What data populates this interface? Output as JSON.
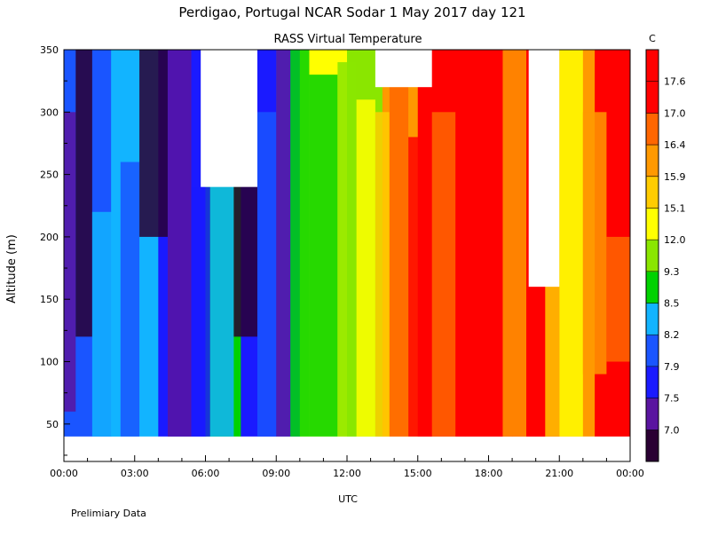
{
  "chart_data": {
    "type": "heatmap",
    "title": "Perdigao, Portugal  NCAR Sodar    1 May 2017  day 121",
    "subtitle": "RASS Virtual Temperature",
    "xlabel": "UTC",
    "ylabel": "Altitude (m)",
    "footnote": "Prelimiary Data",
    "x_ticks": [
      "00:00",
      "03:00",
      "06:00",
      "09:00",
      "12:00",
      "15:00",
      "18:00",
      "21:00",
      "00:00"
    ],
    "y_ticks": [
      "50",
      "100",
      "150",
      "200",
      "250",
      "300",
      "350"
    ],
    "xlim_hours": [
      0,
      24
    ],
    "ylim_m": [
      20,
      350
    ],
    "colorbar": {
      "unit": "C",
      "levels": [
        "7.0",
        "7.5",
        "7.9",
        "8.2",
        "8.5",
        "9.3",
        "12.0",
        "15.1",
        "15.9",
        "16.4",
        "17.0",
        "17.6"
      ],
      "colors": [
        "#2a0033",
        "#5a14a0",
        "#1a1aff",
        "#1a55ff",
        "#12b4ff",
        "#00d200",
        "#8ae600",
        "#ffff00",
        "#ffcc00",
        "#ff9900",
        "#ff6600",
        "#ff0000",
        "#ff0000"
      ]
    },
    "series": [
      {
        "x_hours": [
          0,
          2,
          4,
          6,
          7.5,
          9,
          10,
          12,
          13.5,
          15,
          17,
          19,
          20,
          21,
          22.5,
          24
        ],
        "profile_color_levels": [
          "7.9",
          "8.2",
          "7.5",
          "8.5",
          "7.5",
          "7.9",
          "12.0",
          "9.3",
          "15.9",
          "17.6",
          "17.6",
          "17.0",
          "17.6",
          "15.9",
          "17.0",
          "16.4"
        ]
      }
    ]
  }
}
